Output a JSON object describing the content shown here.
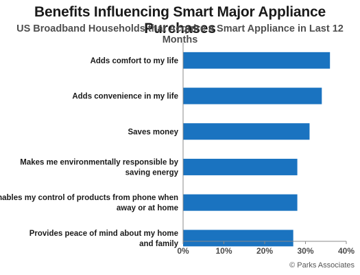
{
  "chart_data": {
    "type": "bar",
    "orientation": "horizontal",
    "title": "Benefits Influencing Smart Major Appliance Purchases",
    "subtitle": "US Broadband Households that Acquire a Smart Appliance in Last 12 Months",
    "categories": [
      [
        "Adds comfort to my life"
      ],
      [
        "Adds convenience in my life"
      ],
      [
        "Saves money"
      ],
      [
        "Makes me environmentally responsible by",
        "saving energy"
      ],
      [
        "Enables my control of products from phone when",
        "away or at home"
      ],
      [
        "Provides peace of mind about my home",
        "and family"
      ]
    ],
    "values": [
      36,
      34,
      31,
      28,
      28,
      27
    ],
    "xlim": [
      0,
      40
    ],
    "xticks": [
      "0%",
      "10%",
      "20%",
      "30%",
      "40%"
    ],
    "bar_color": "#1a73c0",
    "grid": false
  },
  "credit": "© Parks Associates"
}
